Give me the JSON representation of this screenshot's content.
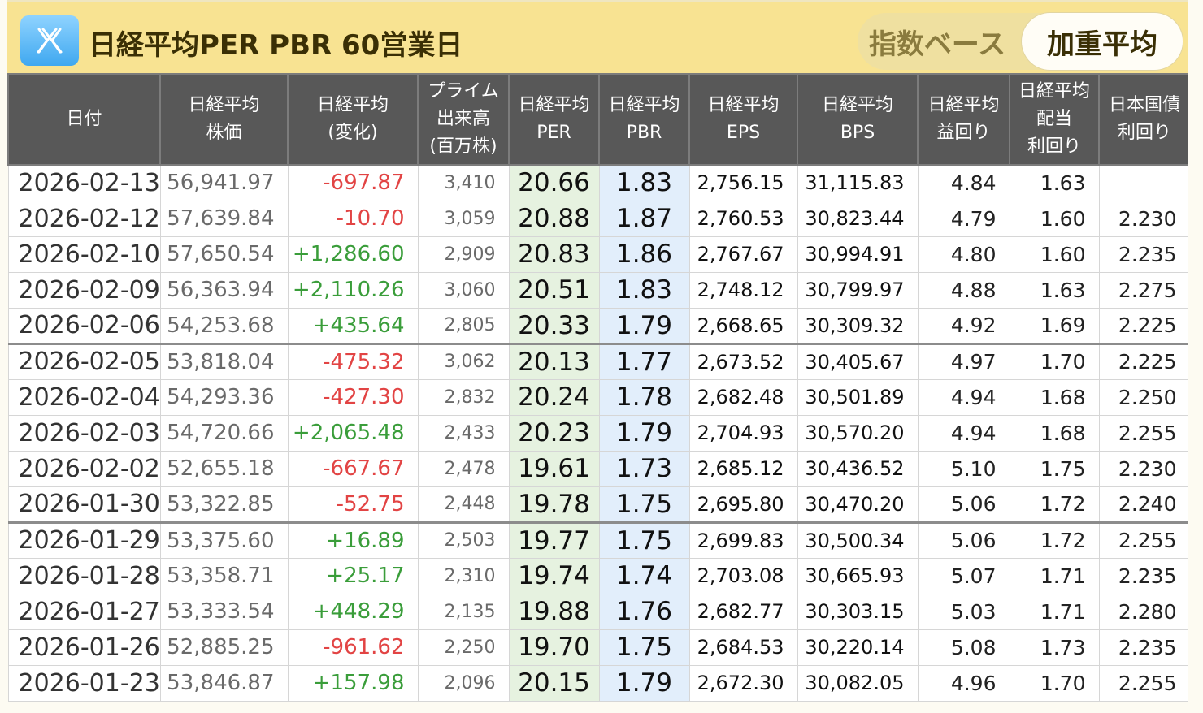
{
  "header": {
    "title": "日経平均PER PBR 60営業日",
    "toggle": {
      "index_label": "指数ベース",
      "weighted_label": "加重平均"
    }
  },
  "columns": [
    [
      "日付"
    ],
    [
      "日経平均",
      "株価"
    ],
    [
      "日経平均",
      "(変化)"
    ],
    [
      "プライム",
      "出来高",
      "(百万株)"
    ],
    [
      "日経平均",
      "PER"
    ],
    [
      "日経平均",
      "PBR"
    ],
    [
      "日経平均",
      "EPS"
    ],
    [
      "日経平均",
      "BPS"
    ],
    [
      "日経平均",
      "益回り"
    ],
    [
      "日経平均",
      "配当",
      "利回り"
    ],
    [
      "日本国債",
      "利回り"
    ]
  ],
  "rows": [
    {
      "date": "2026-02-13",
      "price": "56,941.97",
      "change": "-697.87",
      "volume": "3,410",
      "per": "20.66",
      "pbr": "1.83",
      "eps": "2,756.15",
      "bps": "31,115.83",
      "earn_yield": "4.84",
      "div_yield": "1.63",
      "jgb": ""
    },
    {
      "date": "2026-02-12",
      "price": "57,639.84",
      "change": "-10.70",
      "volume": "3,059",
      "per": "20.88",
      "pbr": "1.87",
      "eps": "2,760.53",
      "bps": "30,823.44",
      "earn_yield": "4.79",
      "div_yield": "1.60",
      "jgb": "2.230"
    },
    {
      "date": "2026-02-10",
      "price": "57,650.54",
      "change": "+1,286.60",
      "volume": "2,909",
      "per": "20.83",
      "pbr": "1.86",
      "eps": "2,767.67",
      "bps": "30,994.91",
      "earn_yield": "4.80",
      "div_yield": "1.60",
      "jgb": "2.235"
    },
    {
      "date": "2026-02-09",
      "price": "56,363.94",
      "change": "+2,110.26",
      "volume": "3,060",
      "per": "20.51",
      "pbr": "1.83",
      "eps": "2,748.12",
      "bps": "30,799.97",
      "earn_yield": "4.88",
      "div_yield": "1.63",
      "jgb": "2.275"
    },
    {
      "date": "2026-02-06",
      "price": "54,253.68",
      "change": "+435.64",
      "volume": "2,805",
      "per": "20.33",
      "pbr": "1.79",
      "eps": "2,668.65",
      "bps": "30,309.32",
      "earn_yield": "4.92",
      "div_yield": "1.69",
      "jgb": "2.225"
    },
    {
      "date": "2026-02-05",
      "price": "53,818.04",
      "change": "-475.32",
      "volume": "3,062",
      "per": "20.13",
      "pbr": "1.77",
      "eps": "2,673.52",
      "bps": "30,405.67",
      "earn_yield": "4.97",
      "div_yield": "1.70",
      "jgb": "2.225",
      "week_start": true
    },
    {
      "date": "2026-02-04",
      "price": "54,293.36",
      "change": "-427.30",
      "volume": "2,832",
      "per": "20.24",
      "pbr": "1.78",
      "eps": "2,682.48",
      "bps": "30,501.89",
      "earn_yield": "4.94",
      "div_yield": "1.68",
      "jgb": "2.250"
    },
    {
      "date": "2026-02-03",
      "price": "54,720.66",
      "change": "+2,065.48",
      "volume": "2,433",
      "per": "20.23",
      "pbr": "1.79",
      "eps": "2,704.93",
      "bps": "30,570.20",
      "earn_yield": "4.94",
      "div_yield": "1.68",
      "jgb": "2.255"
    },
    {
      "date": "2026-02-02",
      "price": "52,655.18",
      "change": "-667.67",
      "volume": "2,478",
      "per": "19.61",
      "pbr": "1.73",
      "eps": "2,685.12",
      "bps": "30,436.52",
      "earn_yield": "5.10",
      "div_yield": "1.75",
      "jgb": "2.230"
    },
    {
      "date": "2026-01-30",
      "price": "53,322.85",
      "change": "-52.75",
      "volume": "2,448",
      "per": "19.78",
      "pbr": "1.75",
      "eps": "2,695.80",
      "bps": "30,470.20",
      "earn_yield": "5.06",
      "div_yield": "1.72",
      "jgb": "2.240"
    },
    {
      "date": "2026-01-29",
      "price": "53,375.60",
      "change": "+16.89",
      "volume": "2,503",
      "per": "19.77",
      "pbr": "1.75",
      "eps": "2,699.83",
      "bps": "30,500.34",
      "earn_yield": "5.06",
      "div_yield": "1.72",
      "jgb": "2.255",
      "week_start": true
    },
    {
      "date": "2026-01-28",
      "price": "53,358.71",
      "change": "+25.17",
      "volume": "2,310",
      "per": "19.74",
      "pbr": "1.74",
      "eps": "2,703.08",
      "bps": "30,665.93",
      "earn_yield": "5.07",
      "div_yield": "1.71",
      "jgb": "2.235"
    },
    {
      "date": "2026-01-27",
      "price": "53,333.54",
      "change": "+448.29",
      "volume": "2,135",
      "per": "19.88",
      "pbr": "1.76",
      "eps": "2,682.77",
      "bps": "30,303.15",
      "earn_yield": "5.03",
      "div_yield": "1.71",
      "jgb": "2.280"
    },
    {
      "date": "2026-01-26",
      "price": "52,885.25",
      "change": "-961.62",
      "volume": "2,250",
      "per": "19.70",
      "pbr": "1.75",
      "eps": "2,684.53",
      "bps": "30,220.14",
      "earn_yield": "5.08",
      "div_yield": "1.73",
      "jgb": "2.235"
    },
    {
      "date": "2026-01-23",
      "price": "53,846.87",
      "change": "+157.98",
      "volume": "2,096",
      "per": "20.15",
      "pbr": "1.79",
      "eps": "2,672.30",
      "bps": "30,082.05",
      "earn_yield": "4.96",
      "div_yield": "1.70",
      "jgb": "2.255"
    }
  ]
}
